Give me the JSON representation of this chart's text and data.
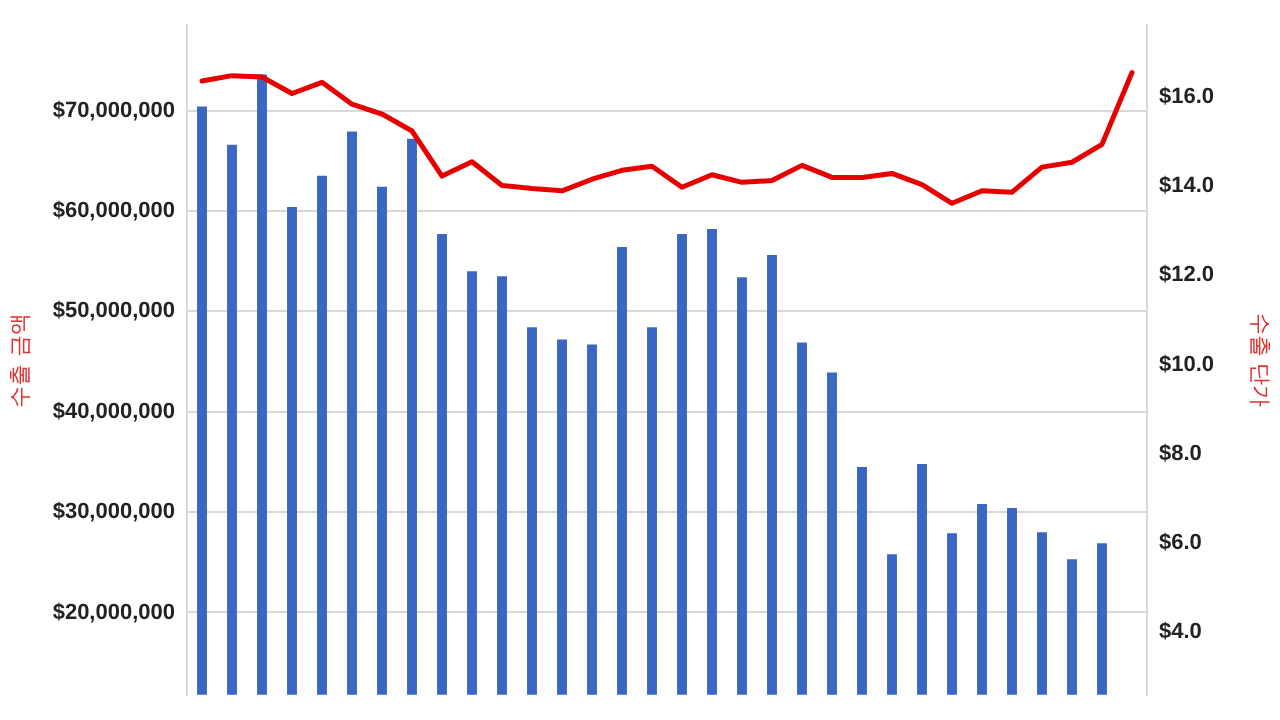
{
  "chart_data": {
    "type": "bar",
    "ylabel": "수출 금액",
    "y2label": "수출 단가",
    "categories": [
      null,
      null,
      null,
      null,
      null,
      null,
      null,
      null,
      null,
      null,
      null,
      null,
      null,
      null,
      null,
      null,
      null,
      null,
      null,
      null,
      null,
      null,
      null,
      null,
      null,
      null,
      null,
      null,
      null,
      null,
      null,
      null
    ],
    "series": [
      {
        "color": "#3a67c3",
        "values": [
          70400000,
          66600000,
          73600000,
          60400000,
          63500000,
          67900000,
          62400000,
          67200000,
          57700000,
          54000000,
          53500000,
          48400000,
          47200000,
          46700000,
          56400000,
          48400000,
          57700000,
          58200000,
          53400000,
          55600000,
          46900000,
          43900000,
          34500000,
          25800000,
          34800000,
          27900000,
          30800000,
          30400000,
          28000000,
          25300000,
          26900000,
          null
        ]
      },
      {
        "type": "line",
        "axis": "y2",
        "color": "#e60000",
        "values": [
          16.35,
          16.47,
          16.44,
          16.07,
          16.32,
          15.83,
          15.61,
          15.23,
          14.22,
          14.54,
          14.01,
          13.94,
          13.89,
          14.15,
          14.35,
          14.44,
          13.97,
          14.25,
          14.08,
          14.12,
          14.46,
          14.19,
          14.19,
          14.28,
          14.03,
          13.61,
          13.89,
          13.86,
          14.42,
          14.53,
          14.93,
          16.54
        ]
      }
    ],
    "ylim": [
      11800000,
      78500000
    ],
    "yticks": [
      {
        "value": 20000000,
        "label": "$20,000,000"
      },
      {
        "value": 30000000,
        "label": "$30,000,000"
      },
      {
        "value": 40000000,
        "label": "$40,000,000"
      },
      {
        "value": 50000000,
        "label": "$50,000,000"
      },
      {
        "value": 60000000,
        "label": "$60,000,000"
      },
      {
        "value": 70000000,
        "label": "$70,000,000"
      }
    ],
    "y2lim": [
      2.6,
      17.6
    ],
    "y2ticks": [
      {
        "value": 4,
        "label": "$4.0"
      },
      {
        "value": 6,
        "label": "$6.0"
      },
      {
        "value": 8,
        "label": "$8.0"
      },
      {
        "value": 10,
        "label": "$10.0"
      },
      {
        "value": 12,
        "label": "$12.0"
      },
      {
        "value": 14,
        "label": "$14.0"
      },
      {
        "value": 16,
        "label": "$16.0"
      }
    ],
    "grid": "y",
    "legend": false,
    "marker": "none"
  }
}
